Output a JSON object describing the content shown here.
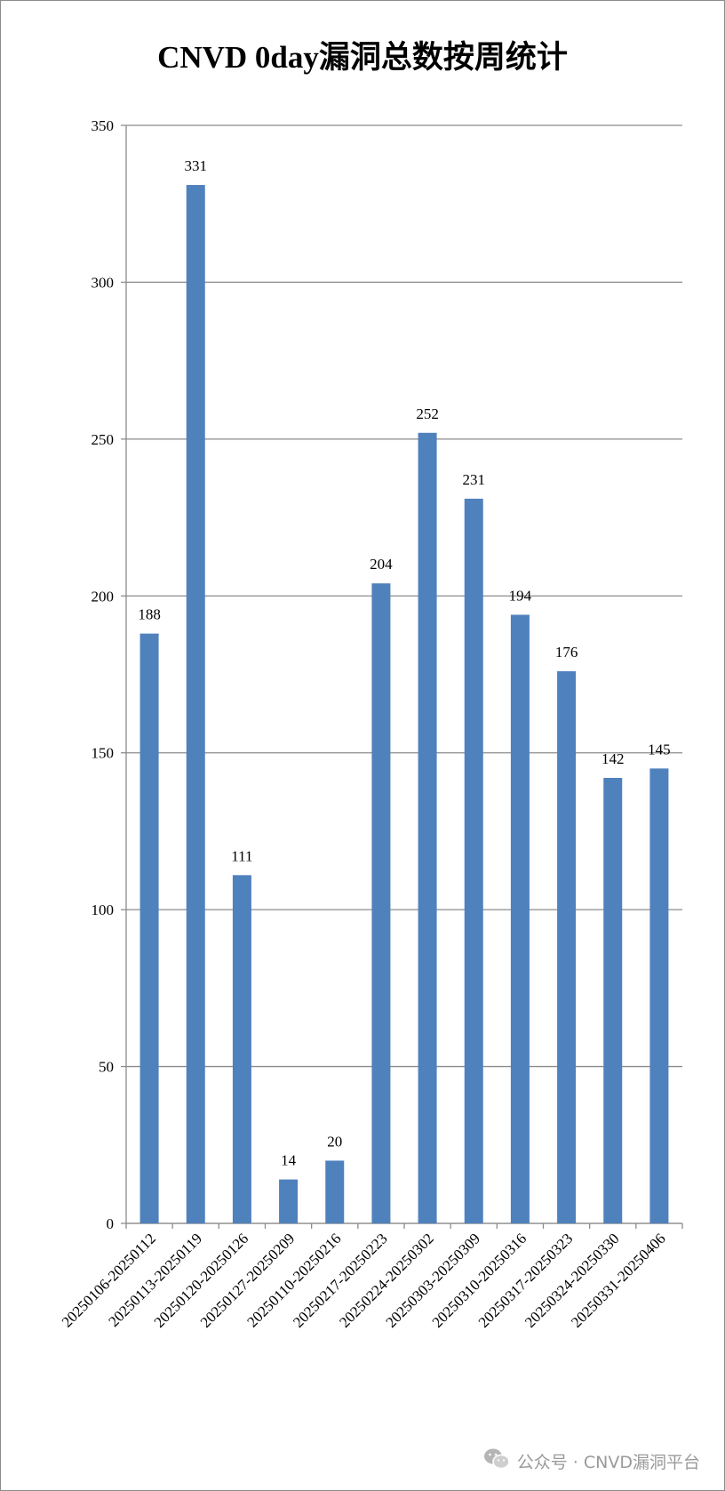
{
  "chart_data": {
    "type": "bar",
    "title": "CNVD 0day漏洞总数按周统计",
    "categories": [
      "20250106-20250112",
      "20250113-20250119",
      "20250120-20250126",
      "20250127-20250209",
      "20250110-20250216",
      "20250217-20250223",
      "20250224-20250302",
      "20250303-20250309",
      "20250310-20250316",
      "20250317-20250323",
      "20250324-20250330",
      "20250331-20250406"
    ],
    "values": [
      188,
      331,
      111,
      14,
      20,
      204,
      252,
      231,
      194,
      176,
      142,
      145
    ],
    "yticks": [
      0,
      50,
      100,
      150,
      200,
      250,
      300,
      350
    ],
    "ylim": [
      0,
      350
    ],
    "grid": true,
    "legend": "none",
    "bar_color": "#4f81bd",
    "xlabel": "",
    "ylabel": ""
  },
  "watermark": {
    "icon": "wechat-icon",
    "text": "公众号 · CNVD漏洞平台"
  }
}
